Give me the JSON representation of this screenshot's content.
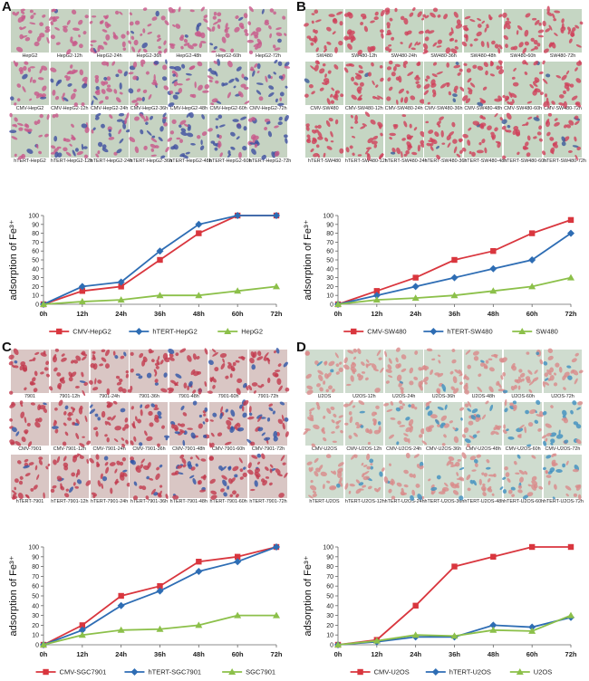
{
  "panels": [
    {
      "id": "A",
      "label": "A",
      "colors": {
        "bg": "#c6d3c2",
        "dot": "#c8578a",
        "blue": "#3d4fa0"
      },
      "image_rows": [
        {
          "blue": 0.1,
          "labels": [
            "HepG2",
            "HepG2-12h",
            "HepG2-24h",
            "HepG2-36h",
            "HepG2-48h",
            "HepG2-60h",
            "HepG2-72h"
          ]
        },
        {
          "blue": 0.45,
          "labels": [
            "CMV-HepG2",
            "CMV-HepG2-12h",
            "CMV-HepG2-24h",
            "CMV-HepG2-36h",
            "CMV-HepG2-48h",
            "CMV-HepG2-60h",
            "CMV-HepG2-72h"
          ]
        },
        {
          "blue": 0.55,
          "labels": [
            "hTERT-HepG2",
            "hTERT-HepG2-12h",
            "hTERT-HepG2-24h",
            "hTERT-HepG2-36h",
            "hTERT-HepG2-48h",
            "hTERT-HepG2-60h",
            "hTERT-HepG2-72h"
          ]
        }
      ]
    },
    {
      "id": "B",
      "label": "B",
      "colors": {
        "bg": "#c5d6c3",
        "dot": "#d0405a",
        "blue": "#3a5a9a"
      },
      "image_rows": [
        {
          "blue": 0.0,
          "labels": [
            "SW480",
            "SW480-12h",
            "SW480-24h",
            "SW480-36h",
            "SW480-48h",
            "SW480-60h",
            "SW480-72h"
          ]
        },
        {
          "blue": 0.05,
          "labels": [
            "CMV-SW480",
            "CMV-SW480-12h",
            "CMV-SW480-24h",
            "CMV-SW480-36h",
            "CMV-SW480-48h",
            "CMV-SW480-60h",
            "CMV-SW480-72h"
          ]
        },
        {
          "blue": 0.05,
          "labels": [
            "hTERT-SW480",
            "hTERT-SW480-12h",
            "hTERT-SW480-24h",
            "hTERT-SW480-36h",
            "hTERT-SW480-48h",
            "hTERT-SW480-60h",
            "hTERT-SW480-72h"
          ]
        }
      ]
    },
    {
      "id": "C",
      "label": "C",
      "colors": {
        "bg": "#d9c6c4",
        "dot": "#c23a4e",
        "blue": "#2e55a8"
      },
      "image_rows": [
        {
          "blue": 0.1,
          "labels": [
            "7901",
            "7901-12h",
            "7901-24h",
            "7901-36h",
            "7901-48h",
            "7901-60h",
            "7901-72h"
          ]
        },
        {
          "blue": 0.35,
          "labels": [
            "CMV-7901",
            "CMV-7901-12h",
            "CMV-7901-24h",
            "CMV-7901-36h",
            "CMV-7901-48h",
            "CMV-7901-60h",
            "CMV-7901-72h"
          ]
        },
        {
          "blue": 0.25,
          "labels": [
            "hTERT-7901",
            "hTERT-7901-12h",
            "hTERT-7901-24h",
            "hTERT-7901-36h",
            "hTERT-7901-48h",
            "hTERT-7901-60h",
            "hTERT-7901-72h"
          ]
        }
      ]
    },
    {
      "id": "D",
      "label": "D",
      "colors": {
        "bg": "#cfdccf",
        "dot": "#d98a8a",
        "blue": "#3d8fbf"
      },
      "image_rows": [
        {
          "blue": 0.15,
          "labels": [
            "U2OS",
            "U2OS-12h",
            "U2OS-24h",
            "U2OS-36h",
            "U2OS-48h",
            "U2OS-60h",
            "U2OS-72h"
          ]
        },
        {
          "blue": 0.45,
          "labels": [
            "CMV-U2OS",
            "CMV-U2OS-12h",
            "CMV-U2OS-24h",
            "CMV-U2OS-36h",
            "CMV-U2OS-48h",
            "CMV-U2OS-60h",
            "CMV-U2OS-72h"
          ]
        },
        {
          "blue": 0.15,
          "labels": [
            "hTERT-U2OS",
            "hTERT-U2OS-12h",
            "hTERT-U2OS-24h",
            "hTERT-U2OS-36h",
            "hTERT-U2OS-48h",
            "hTERT-U2OS-60h",
            "hTERT-U2OS-72h"
          ]
        }
      ]
    }
  ],
  "chart_data": [
    {
      "panel": "A",
      "type": "line",
      "categories": [
        "0h",
        "12h",
        "24h",
        "36h",
        "48h",
        "60h",
        "72h"
      ],
      "ylabel": "adsorption of Fe³⁺",
      "ylim": [
        0,
        100
      ],
      "yticks": [
        0,
        10,
        20,
        30,
        40,
        50,
        60,
        70,
        80,
        90,
        100
      ],
      "legend": "bottom",
      "series": [
        {
          "name": "CMV-HepG2",
          "color": "#d9363e",
          "marker": "square",
          "values": [
            0,
            15,
            20,
            50,
            80,
            100,
            100
          ]
        },
        {
          "name": "hTERT-HepG2",
          "color": "#2e6db4",
          "marker": "diamond",
          "values": [
            0,
            20,
            25,
            60,
            90,
            100,
            100
          ]
        },
        {
          "name": "HepG2",
          "color": "#8cc04a",
          "marker": "triangle",
          "values": [
            0,
            3,
            5,
            10,
            10,
            15,
            20
          ]
        }
      ]
    },
    {
      "panel": "B",
      "type": "line",
      "categories": [
        "0h",
        "12h",
        "24h",
        "36h",
        "48h",
        "60h",
        "72h"
      ],
      "ylabel": "adsorption of Fe³⁺",
      "ylim": [
        0,
        100
      ],
      "yticks": [
        0,
        10,
        20,
        30,
        40,
        50,
        60,
        70,
        80,
        90,
        100
      ],
      "legend": "bottom",
      "series": [
        {
          "name": "CMV-SW480",
          "color": "#d9363e",
          "marker": "square",
          "values": [
            0,
            15,
            30,
            50,
            60,
            80,
            95
          ]
        },
        {
          "name": "hTERT-SW480",
          "color": "#2e6db4",
          "marker": "diamond",
          "values": [
            0,
            10,
            20,
            30,
            40,
            50,
            80
          ]
        },
        {
          "name": "SW480",
          "color": "#8cc04a",
          "marker": "triangle",
          "values": [
            0,
            5,
            7,
            10,
            15,
            20,
            30
          ]
        }
      ]
    },
    {
      "panel": "C",
      "type": "line",
      "categories": [
        "0h",
        "12h",
        "24h",
        "36h",
        "48h",
        "60h",
        "72h"
      ],
      "ylabel": "adsorption of Fe³⁺",
      "ylim": [
        0,
        100
      ],
      "yticks": [
        0,
        10,
        20,
        30,
        40,
        50,
        60,
        70,
        80,
        90,
        100
      ],
      "legend": "bottom",
      "series": [
        {
          "name": "CMV-SGC7901",
          "color": "#d9363e",
          "marker": "square",
          "values": [
            0,
            20,
            50,
            60,
            85,
            90,
            100
          ]
        },
        {
          "name": "hTERT-SGC7901",
          "color": "#2e6db4",
          "marker": "diamond",
          "values": [
            0,
            15,
            40,
            55,
            75,
            85,
            100
          ]
        },
        {
          "name": "SGC7901",
          "color": "#8cc04a",
          "marker": "triangle",
          "values": [
            0,
            10,
            15,
            16,
            20,
            30,
            30
          ]
        }
      ]
    },
    {
      "panel": "D",
      "type": "line",
      "categories": [
        "0h",
        "12h",
        "24h",
        "36h",
        "48h",
        "60h",
        "72h"
      ],
      "ylabel": "adsorption of Fe³⁺",
      "ylim": [
        0,
        100
      ],
      "yticks": [
        0,
        10,
        20,
        30,
        40,
        50,
        60,
        70,
        80,
        90,
        100
      ],
      "legend": "bottom",
      "series": [
        {
          "name": "CMV-U2OS",
          "color": "#d9363e",
          "marker": "square",
          "values": [
            0,
            5,
            40,
            80,
            90,
            100,
            100
          ]
        },
        {
          "name": "hTERT-U2OS",
          "color": "#2e6db4",
          "marker": "diamond",
          "values": [
            0,
            3,
            8,
            8,
            20,
            18,
            28
          ]
        },
        {
          "name": "U2OS",
          "color": "#8cc04a",
          "marker": "triangle",
          "values": [
            0,
            4,
            10,
            9,
            15,
            14,
            30
          ]
        }
      ]
    }
  ]
}
